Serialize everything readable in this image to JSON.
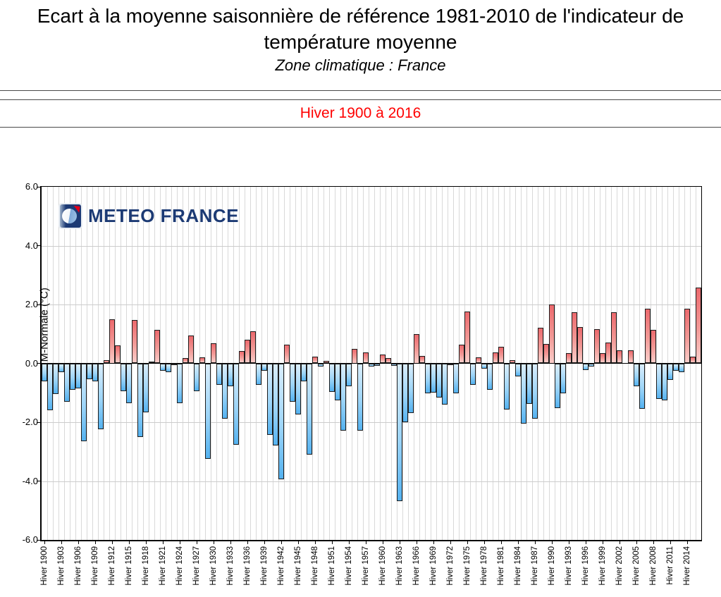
{
  "header": {
    "title": "Ecart à la moyenne saisonnière de référence 1981-2010 de l'indicateur de température moyenne",
    "subtitle": "Zone climatique : France",
    "period_label": "Hiver 1900 à 2016"
  },
  "logo": {
    "text": "METEO FRANCE"
  },
  "chart_data": {
    "type": "bar",
    "title": "Ecart à la moyenne saisonnière de référence 1981-2010 de l'indicateur de température moyenne — Hiver 1900 à 2016",
    "xlabel": "",
    "ylabel": "TM-Normale (°C)",
    "ylim": [
      -6.0,
      6.0
    ],
    "y_ticks": [
      "6.0",
      "4.0",
      "2.0",
      "0.0",
      "-2.0",
      "-4.0",
      "-6.0"
    ],
    "grid": true,
    "legend": "none",
    "x_start_year": 1900,
    "x_end_year": 2016,
    "x_tick_step": 3,
    "x_tick_prefix": "Hiver ",
    "unit": "°C",
    "colors": {
      "positive_bar": "#ec696d",
      "positive_bar_light": "#fbcdc9",
      "negative_bar": "#54b2f0",
      "negative_bar_light": "#daeefc",
      "grid": "#d9d9d9",
      "axis": "#000000",
      "period_text": "#ff0000",
      "logo_blue": "#1c3a74",
      "logo_red": "#e2001a"
    },
    "values": [
      -0.6,
      -1.6,
      -1.05,
      -0.3,
      -1.3,
      -0.9,
      -0.85,
      -2.65,
      -0.55,
      -0.6,
      -2.25,
      0.1,
      1.5,
      0.6,
      -0.95,
      -1.35,
      1.48,
      -2.5,
      -1.67,
      0.06,
      1.14,
      -0.25,
      -0.3,
      -0.05,
      -1.36,
      0.18,
      0.95,
      -0.94,
      0.2,
      -3.25,
      0.68,
      -0.73,
      -1.89,
      -0.77,
      -2.77,
      0.42,
      0.8,
      1.09,
      -0.73,
      -0.24,
      -2.44,
      -2.79,
      -3.93,
      0.64,
      -1.3,
      -1.74,
      -0.6,
      -3.1,
      0.22,
      -0.1,
      0.08,
      -0.98,
      -1.26,
      -2.29,
      -0.78,
      0.5,
      -2.29,
      0.38,
      -0.1,
      -0.08,
      0.29,
      0.18,
      -0.08,
      -4.68,
      -2.0,
      -1.69,
      1.0,
      0.26,
      -1.02,
      -1.0,
      -1.16,
      -1.41,
      -0.05,
      -1.02,
      0.64,
      1.76,
      -0.73,
      0.2,
      -0.18,
      -0.9,
      0.38,
      0.57,
      -1.58,
      0.1,
      -0.45,
      -2.04,
      -1.37,
      -1.89,
      1.2,
      0.65,
      2.0,
      -1.53,
      -1.02,
      0.34,
      1.74,
      1.23,
      -0.22,
      -0.1,
      1.15,
      0.34,
      0.7,
      1.74,
      0.44,
      0.0,
      0.45,
      -0.77,
      -1.55,
      1.85,
      1.13,
      -1.2,
      -1.25,
      -0.57,
      -0.25,
      -0.3,
      1.85,
      0.22,
      2.57
    ]
  }
}
